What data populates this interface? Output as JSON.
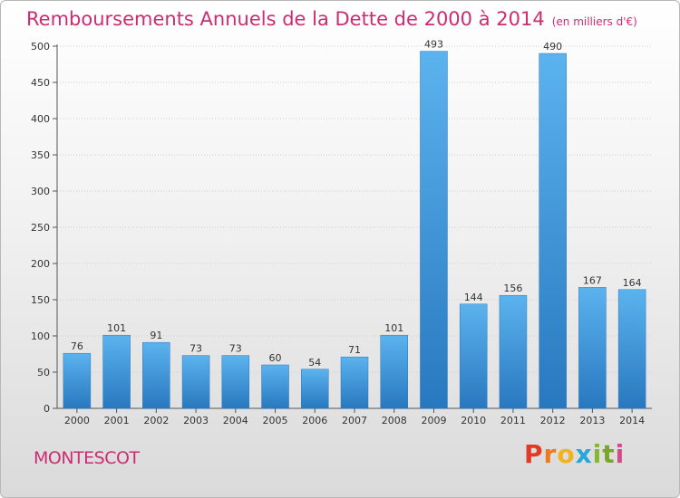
{
  "title": "Remboursements Annuels de la Dette de 2000 à 2014",
  "unit": "(en milliers d'€)",
  "commune": "MONTESCOT",
  "brand": {
    "letters": [
      "P",
      "r",
      "o",
      "x",
      "i",
      "t",
      "i"
    ],
    "colors": [
      "#e33a26",
      "#ee7a1d",
      "#f3b31c",
      "#27a6d9",
      "#83b92e",
      "#7aa52a",
      "#d64a8a"
    ]
  },
  "colors": {
    "bar": "#4aa3e2",
    "bar_dark": "#2a78c0",
    "text": "#cc2c72",
    "axis": "#555555",
    "grid": "#cfcfcf"
  },
  "chart_data": {
    "type": "bar",
    "categories": [
      "2000",
      "2001",
      "2002",
      "2003",
      "2004",
      "2005",
      "2006",
      "2007",
      "2008",
      "2009",
      "2010",
      "2011",
      "2012",
      "2013",
      "2014"
    ],
    "values": [
      76,
      101,
      91,
      73,
      73,
      60,
      54,
      71,
      101,
      493,
      144,
      156,
      490,
      167,
      164
    ],
    "ylim": [
      0,
      500
    ],
    "yticks": [
      0,
      50,
      100,
      150,
      200,
      250,
      300,
      350,
      400,
      450,
      500
    ],
    "grid": true
  }
}
